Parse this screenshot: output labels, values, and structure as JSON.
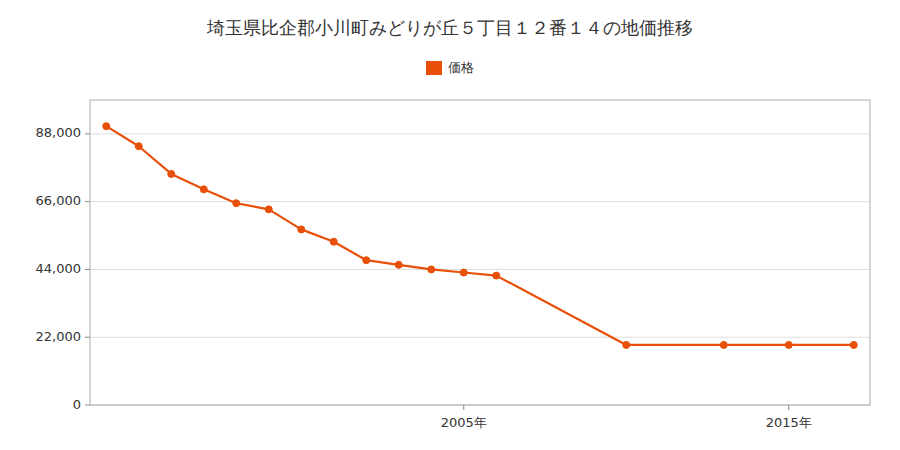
{
  "chart_data": {
    "type": "line",
    "title": "埼玉県比企郡小川町みどりが丘５丁目１２番１４の地価推移",
    "x": [
      1994,
      1995,
      1996,
      1997,
      1998,
      1999,
      2000,
      2001,
      2002,
      2003,
      2004,
      2005,
      2006,
      2010,
      2013,
      2015,
      2017
    ],
    "series": [
      {
        "name": "価格",
        "color": "#e8500a",
        "marker": "circle",
        "line_style": "solid",
        "values": [
          90500,
          84000,
          75000,
          70000,
          65500,
          63500,
          57000,
          53000,
          47000,
          45500,
          44000,
          43000,
          42000,
          19500,
          19500,
          19500,
          19500
        ]
      }
    ],
    "xlim": [
      1993.5,
      2017.5
    ],
    "xticks": [
      {
        "value": 2005,
        "label": "2005年"
      },
      {
        "value": 2015,
        "label": "2015年"
      }
    ],
    "ylim": [
      0,
      99000
    ],
    "yticks": [
      0,
      {
        "value": 22000,
        "label": "22,000"
      },
      {
        "value": 44000,
        "label": "44,000"
      },
      {
        "value": 66000,
        "label": "66,000"
      },
      {
        "value": 88000,
        "label": "88,000"
      }
    ],
    "grid": true,
    "legend": "top"
  }
}
